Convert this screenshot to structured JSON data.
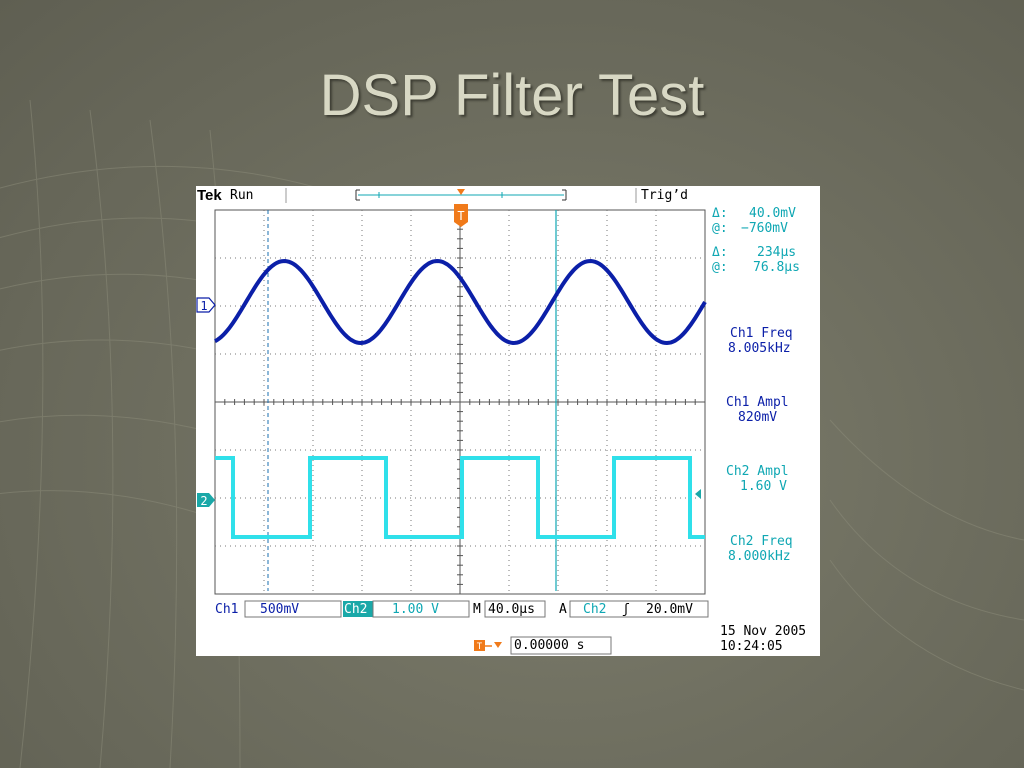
{
  "slide": {
    "title": "DSP Filter Test"
  },
  "scope": {
    "brand": "Tek",
    "run_state": "Run",
    "trigger_status": "Trig’d",
    "trigger_marker": "T",
    "ch1_marker": "1",
    "ch2_marker": "2",
    "readout": {
      "v_delta_symbol": "Δ:",
      "v_delta_value": "40.0mV",
      "v_at_symbol": "@:",
      "v_at_value": "−760mV",
      "t_delta_symbol": "Δ:",
      "t_delta_value": "234µs",
      "t_at_symbol": "@:",
      "t_at_value": "76.8µs"
    },
    "measurements": [
      {
        "label": "Ch1 Freq",
        "value": "8.005kHz",
        "color": "#0b1fa8"
      },
      {
        "label": "Ch1 Ampl",
        "value": "820mV",
        "color": "#0b1fa8"
      },
      {
        "label": "Ch2 Ampl",
        "value": "1.60 V",
        "color": "#0fa7b3"
      },
      {
        "label": "Ch2 Freq",
        "value": "8.000kHz",
        "color": "#0fa7b3"
      }
    ],
    "bottom": {
      "ch1_label": "Ch1",
      "ch1_scale": "500mV",
      "ch2_label": "Ch2",
      "ch2_scale": "1.00 V",
      "timebase_label": "M",
      "timebase_value": "40.0µs",
      "trigger_mode": "A",
      "trigger_source": "Ch2",
      "trigger_slope": "ʃ",
      "trigger_level": "20.0mV",
      "trigger_pos_icon": "T→▼",
      "trigger_pos_value": "0.00000 s"
    },
    "datetime": {
      "date": "15 Nov 2005",
      "time": "10:24:05"
    },
    "colors": {
      "ch1": "#0b1fa8",
      "ch2": "#2fe0ea",
      "trigger": "#f07a1a",
      "grid": "#555555"
    },
    "waveforms": {
      "ch1": {
        "shape": "sine",
        "frequency": "8.005kHz"
      },
      "ch2": {
        "shape": "square",
        "frequency": "8.000kHz"
      }
    }
  }
}
